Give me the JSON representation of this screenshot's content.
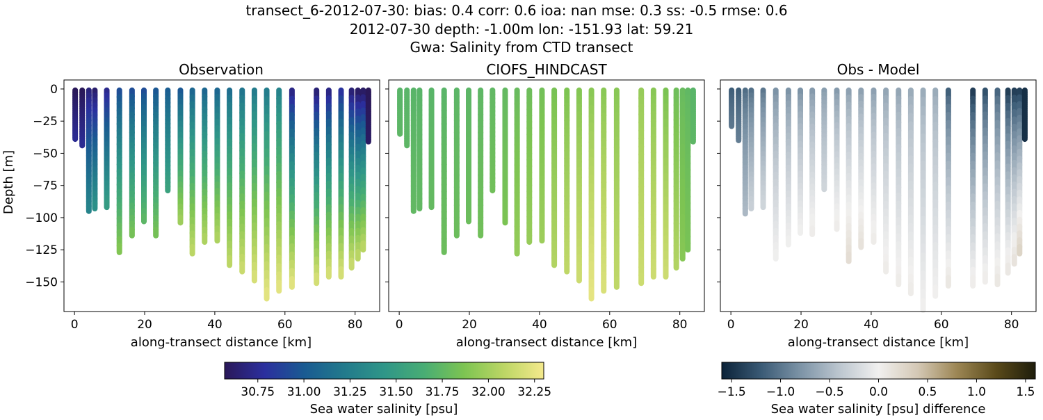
{
  "suptitle": {
    "line1": "transect_6-2012-07-30: bias: 0.4  corr: 0.6  ioa: nan  mse: 0.3  ss: -0.5  rmse: 0.6",
    "line2": "2012-07-30 depth: -1.00m lon: -151.93 lat: 59.21",
    "line3": "Gwa: Salinity from CTD transect"
  },
  "chart_data": [
    {
      "type": "scatter",
      "title": "Observation",
      "xlabel": "along-transect distance [km]",
      "ylabel": "Depth [m]",
      "xlim": [
        -3,
        87
      ],
      "ylim": [
        -173,
        7
      ],
      "xticks": [
        "0",
        "20",
        "40",
        "60",
        "80"
      ],
      "yticks": [
        "0",
        "−25",
        "−50",
        "−75",
        "−100",
        "−125",
        "−150"
      ],
      "colormap": "haline",
      "casts": [
        {
          "x": 0.2,
          "bottom": -39,
          "top_salinity": 30.55,
          "bottom_salinity": 30.75
        },
        {
          "x": 2.2,
          "bottom": -44,
          "top_salinity": 30.55,
          "bottom_salinity": 30.75
        },
        {
          "x": 4.1,
          "bottom": -95,
          "top_salinity": 30.65,
          "bottom_salinity": 31.3
        },
        {
          "x": 5.8,
          "bottom": -93,
          "top_salinity": 30.6,
          "bottom_salinity": 31.4
        },
        {
          "x": 9.2,
          "bottom": -92,
          "top_salinity": 30.7,
          "bottom_salinity": 31.5
        },
        {
          "x": 12.8,
          "bottom": -127,
          "top_salinity": 30.9,
          "bottom_salinity": 31.9
        },
        {
          "x": 16.4,
          "bottom": -114,
          "top_salinity": 30.9,
          "bottom_salinity": 31.85
        },
        {
          "x": 19.8,
          "bottom": -103,
          "top_salinity": 30.9,
          "bottom_salinity": 31.75
        },
        {
          "x": 23.2,
          "bottom": -114,
          "top_salinity": 30.95,
          "bottom_salinity": 31.85
        },
        {
          "x": 26.6,
          "bottom": -79,
          "top_salinity": 31.0,
          "bottom_salinity": 31.55
        },
        {
          "x": 30.2,
          "bottom": -104,
          "top_salinity": 30.95,
          "bottom_salinity": 32.0
        },
        {
          "x": 33.6,
          "bottom": -128,
          "top_salinity": 31.05,
          "bottom_salinity": 32.1
        },
        {
          "x": 37.1,
          "bottom": -119,
          "top_salinity": 31.05,
          "bottom_salinity": 32.05
        },
        {
          "x": 40.7,
          "bottom": -118,
          "top_salinity": 31.05,
          "bottom_salinity": 32.05
        },
        {
          "x": 44.2,
          "bottom": -137,
          "top_salinity": 31.1,
          "bottom_salinity": 32.1
        },
        {
          "x": 47.8,
          "bottom": -142,
          "top_salinity": 31.15,
          "bottom_salinity": 32.15
        },
        {
          "x": 51.3,
          "bottom": -149,
          "top_salinity": 31.2,
          "bottom_salinity": 32.2
        },
        {
          "x": 54.8,
          "bottom": -163,
          "top_salinity": 31.2,
          "bottom_salinity": 32.25
        },
        {
          "x": 58.3,
          "bottom": -157,
          "top_salinity": 31.25,
          "bottom_salinity": 32.25
        },
        {
          "x": 62.0,
          "bottom": -154,
          "top_salinity": 30.65,
          "bottom_salinity": 32.25
        },
        {
          "x": 69.0,
          "bottom": -151,
          "top_salinity": 30.6,
          "bottom_salinity": 32.2
        },
        {
          "x": 72.5,
          "bottom": -146,
          "top_salinity": 30.65,
          "bottom_salinity": 32.2
        },
        {
          "x": 76.0,
          "bottom": -146,
          "top_salinity": 30.75,
          "bottom_salinity": 32.2
        },
        {
          "x": 79.0,
          "bottom": -139,
          "top_salinity": 30.6,
          "bottom_salinity": 32.15
        },
        {
          "x": 80.8,
          "bottom": -132,
          "top_salinity": 30.55,
          "bottom_salinity": 32.1
        },
        {
          "x": 82.3,
          "bottom": -125,
          "top_salinity": 30.55,
          "bottom_salinity": 32.1
        },
        {
          "x": 83.8,
          "bottom": -41,
          "top_salinity": 30.55,
          "bottom_salinity": 30.6
        }
      ]
    },
    {
      "type": "scatter",
      "title": "CIOFS_HINDCAST",
      "xlabel": "along-transect distance [km]",
      "xlim": [
        -3,
        87
      ],
      "ylim": [
        -173,
        7
      ],
      "xticks": [
        "0",
        "20",
        "40",
        "60",
        "80"
      ],
      "colormap": "haline",
      "casts": [
        {
          "x": 0.2,
          "bottom": -35,
          "top_salinity": 31.72,
          "bottom_salinity": 31.74
        },
        {
          "x": 2.2,
          "bottom": -44,
          "top_salinity": 31.72,
          "bottom_salinity": 31.74
        },
        {
          "x": 4.1,
          "bottom": -95,
          "top_salinity": 31.72,
          "bottom_salinity": 31.76
        },
        {
          "x": 5.8,
          "bottom": -93,
          "top_salinity": 31.72,
          "bottom_salinity": 31.76
        },
        {
          "x": 9.2,
          "bottom": -92,
          "top_salinity": 31.72,
          "bottom_salinity": 31.77
        },
        {
          "x": 12.8,
          "bottom": -127,
          "top_salinity": 31.72,
          "bottom_salinity": 31.8
        },
        {
          "x": 16.4,
          "bottom": -114,
          "top_salinity": 31.73,
          "bottom_salinity": 31.8
        },
        {
          "x": 19.8,
          "bottom": -103,
          "top_salinity": 31.73,
          "bottom_salinity": 31.8
        },
        {
          "x": 23.2,
          "bottom": -114,
          "top_salinity": 31.74,
          "bottom_salinity": 31.82
        },
        {
          "x": 26.6,
          "bottom": -79,
          "top_salinity": 31.75,
          "bottom_salinity": 31.82
        },
        {
          "x": 30.2,
          "bottom": -104,
          "top_salinity": 31.76,
          "bottom_salinity": 31.86
        },
        {
          "x": 33.6,
          "bottom": -128,
          "top_salinity": 31.78,
          "bottom_salinity": 31.95
        },
        {
          "x": 37.1,
          "bottom": -119,
          "top_salinity": 31.8,
          "bottom_salinity": 31.96
        },
        {
          "x": 40.7,
          "bottom": -118,
          "top_salinity": 31.82,
          "bottom_salinity": 31.98
        },
        {
          "x": 44.2,
          "bottom": -137,
          "top_salinity": 31.84,
          "bottom_salinity": 32.05
        },
        {
          "x": 47.8,
          "bottom": -142,
          "top_salinity": 31.86,
          "bottom_salinity": 32.1
        },
        {
          "x": 51.3,
          "bottom": -149,
          "top_salinity": 31.88,
          "bottom_salinity": 32.15
        },
        {
          "x": 54.8,
          "bottom": -163,
          "top_salinity": 31.9,
          "bottom_salinity": 32.25
        },
        {
          "x": 58.3,
          "bottom": -157,
          "top_salinity": 31.9,
          "bottom_salinity": 32.2
        },
        {
          "x": 62.0,
          "bottom": -154,
          "top_salinity": 31.9,
          "bottom_salinity": 32.1
        },
        {
          "x": 69.0,
          "bottom": -151,
          "top_salinity": 31.95,
          "bottom_salinity": 32.15
        },
        {
          "x": 72.5,
          "bottom": -146,
          "top_salinity": 31.9,
          "bottom_salinity": 32.15
        },
        {
          "x": 76.0,
          "bottom": -146,
          "top_salinity": 31.85,
          "bottom_salinity": 32.15
        },
        {
          "x": 79.0,
          "bottom": -139,
          "top_salinity": 31.8,
          "bottom_salinity": 32.05
        },
        {
          "x": 80.8,
          "bottom": -132,
          "top_salinity": 31.78,
          "bottom_salinity": 31.9
        },
        {
          "x": 82.3,
          "bottom": -125,
          "top_salinity": 31.75,
          "bottom_salinity": 31.85
        },
        {
          "x": 83.8,
          "bottom": -41,
          "top_salinity": 31.72,
          "bottom_salinity": 31.74
        }
      ]
    },
    {
      "type": "scatter",
      "title": "Obs - Model",
      "xlabel": "along-transect distance [km]",
      "xlim": [
        -3,
        87
      ],
      "ylim": [
        -173,
        7
      ],
      "xticks": [
        "0",
        "20",
        "40",
        "60",
        "80"
      ],
      "colormap": "diff",
      "casts": [
        {
          "x": 0.2,
          "bottom": -29,
          "top_diff": -1.2,
          "bottom_diff": -1.0
        },
        {
          "x": 2.2,
          "bottom": -40,
          "top_diff": -1.2,
          "bottom_diff": -0.95
        },
        {
          "x": 4.1,
          "bottom": -97,
          "top_diff": -1.1,
          "bottom_diff": -0.5
        },
        {
          "x": 5.8,
          "bottom": -93,
          "top_diff": -1.1,
          "bottom_diff": -0.3
        },
        {
          "x": 9.2,
          "bottom": -92,
          "top_diff": -1.05,
          "bottom_diff": -0.25
        },
        {
          "x": 12.8,
          "bottom": -132,
          "top_diff": -0.85,
          "bottom_diff": 0.0
        },
        {
          "x": 16.4,
          "bottom": -121,
          "top_diff": -0.85,
          "bottom_diff": 0.0
        },
        {
          "x": 19.8,
          "bottom": -112,
          "top_diff": -0.85,
          "bottom_diff": 0.0
        },
        {
          "x": 23.2,
          "bottom": -113,
          "top_diff": -0.8,
          "bottom_diff": 0.05
        },
        {
          "x": 26.6,
          "bottom": -78,
          "top_diff": -0.75,
          "bottom_diff": -0.25
        },
        {
          "x": 30.2,
          "bottom": -109,
          "top_diff": -0.8,
          "bottom_diff": 0.05
        },
        {
          "x": 33.6,
          "bottom": -134,
          "top_diff": -0.75,
          "bottom_diff": 0.2
        },
        {
          "x": 37.1,
          "bottom": -123,
          "top_diff": -0.75,
          "bottom_diff": 0.15
        },
        {
          "x": 40.7,
          "bottom": -119,
          "top_diff": -0.75,
          "bottom_diff": 0.05
        },
        {
          "x": 44.2,
          "bottom": -142,
          "top_diff": -0.7,
          "bottom_diff": 0.05
        },
        {
          "x": 47.8,
          "bottom": -152,
          "top_diff": -0.7,
          "bottom_diff": 0.05
        },
        {
          "x": 51.3,
          "bottom": -159,
          "top_diff": -0.65,
          "bottom_diff": 0.05
        },
        {
          "x": 54.8,
          "bottom": -172,
          "top_diff": -0.65,
          "bottom_diff": 0.0
        },
        {
          "x": 58.3,
          "bottom": -161,
          "top_diff": -0.65,
          "bottom_diff": 0.0
        },
        {
          "x": 62.0,
          "bottom": -153,
          "top_diff": -1.25,
          "bottom_diff": 0.1
        },
        {
          "x": 69.0,
          "bottom": -153,
          "top_diff": -1.5,
          "bottom_diff": 0.05
        },
        {
          "x": 72.5,
          "bottom": -150,
          "top_diff": -1.35,
          "bottom_diff": 0.05
        },
        {
          "x": 76.0,
          "bottom": -152,
          "top_diff": -1.2,
          "bottom_diff": 0.1
        },
        {
          "x": 79.0,
          "bottom": -143,
          "top_diff": -1.5,
          "bottom_diff": 0.1
        },
        {
          "x": 80.8,
          "bottom": -136,
          "top_diff": -1.5,
          "bottom_diff": 0.15
        },
        {
          "x": 82.3,
          "bottom": -128,
          "top_diff": -1.5,
          "bottom_diff": 0.3
        },
        {
          "x": 83.8,
          "bottom": -39,
          "top_diff": -1.5,
          "bottom_diff": -1.5
        }
      ]
    }
  ],
  "colorbars": {
    "salinity": {
      "label": "Sea water salinity [psu]",
      "range": [
        30.57,
        32.3
      ],
      "ticks": [
        30.75,
        31.0,
        31.25,
        31.5,
        31.75,
        32.0,
        32.25
      ],
      "tick_labels": [
        "30.75",
        "31.00",
        "31.25",
        "31.50",
        "31.75",
        "32.00",
        "32.25"
      ],
      "colors": [
        "#2a1859",
        "#2b2f9e",
        "#1a5b92",
        "#227a8c",
        "#2f9688",
        "#48ad74",
        "#7dc452",
        "#bcd665",
        "#f4e98c"
      ]
    },
    "difference": {
      "label": "Sea water salinity [psu] difference",
      "range": [
        -1.6,
        1.6
      ],
      "ticks": [
        -1.5,
        -1.0,
        -0.5,
        0.0,
        0.5,
        1.0,
        1.5
      ],
      "tick_labels": [
        "−1.5",
        "−1.0",
        "−0.5",
        "0.0",
        "0.5",
        "1.0",
        "1.5"
      ],
      "colors": [
        "#0b2238",
        "#3a5a75",
        "#7c93a6",
        "#bcc6cf",
        "#f1f0ef",
        "#d4c8b5",
        "#9c8654",
        "#5a4a1a",
        "#1e1d0b"
      ]
    }
  }
}
